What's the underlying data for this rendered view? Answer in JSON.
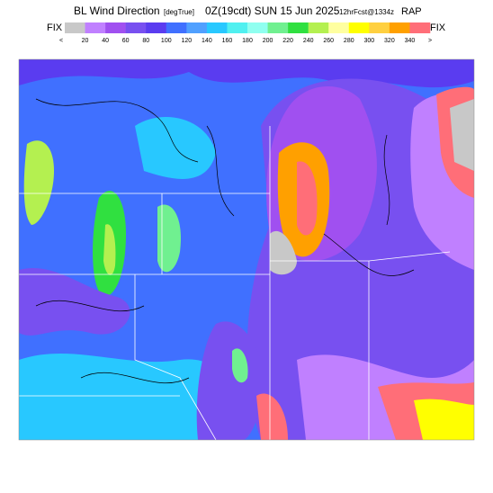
{
  "header": {
    "title_parts": [
      "BL Wind Direction",
      "[degTrue]",
      "0Z(19cdt) SUN 15 Jun 2025",
      "12hrFcst@1334z",
      "RAP"
    ]
  },
  "colorbar": {
    "left_label": "FIX",
    "right_label": "FIX",
    "labels": [
      "<",
      "20",
      "40",
      "60",
      "80",
      "100",
      "120",
      "140",
      "160",
      "180",
      "200",
      "220",
      "240",
      "260",
      "280",
      "300",
      "320",
      "340",
      ">"
    ],
    "colors": [
      "#c8c8c8",
      "#c080ff",
      "#a050f0",
      "#7850f0",
      "#5a3cf0",
      "#4070ff",
      "#50a0ff",
      "#28c8ff",
      "#50f0f0",
      "#90fff0",
      "#70f090",
      "#30e040",
      "#b4f050",
      "#ffffa0",
      "#ffff00",
      "#ffd040",
      "#ffa000",
      "#ff6e78"
    ]
  }
}
